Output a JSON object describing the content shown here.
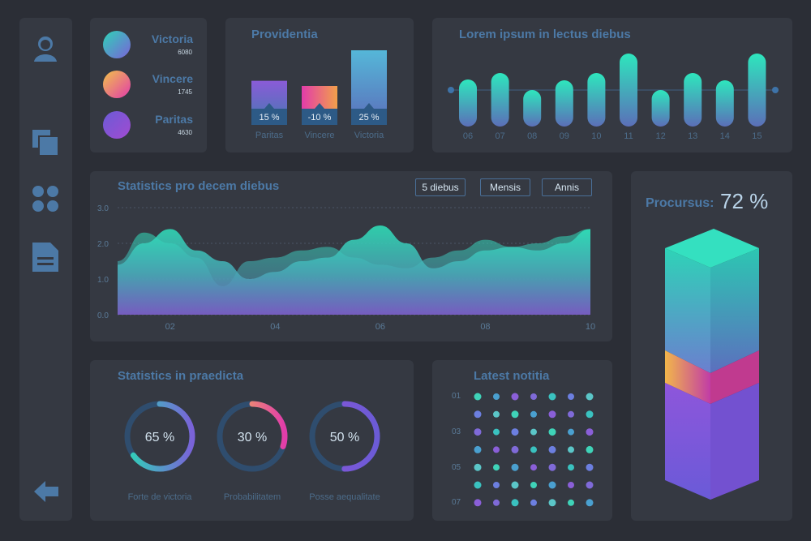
{
  "legend": [
    {
      "name": "Victoria",
      "value": "6080",
      "color_a": "#2ed3b7",
      "color_b": "#7a62d8"
    },
    {
      "name": "Vincere",
      "value": "1745",
      "color_a": "#f2c34a",
      "color_b": "#e23caa"
    },
    {
      "name": "Paritas",
      "value": "4630",
      "color_a": "#6b5bd6",
      "color_b": "#a14bd1"
    }
  ],
  "providentia": {
    "title": "Providentia",
    "chart_data": {
      "type": "bar",
      "categories": [
        "Paritas",
        "Vincere",
        "Victoria"
      ],
      "values": [
        15,
        -10,
        25
      ],
      "labels": [
        "15 %",
        "-10 %",
        "25 %"
      ]
    }
  },
  "lorem": {
    "title": "Lorem ipsum in lectus diebus",
    "chart_data": {
      "type": "bar",
      "categories": [
        "06",
        "07",
        "08",
        "09",
        "10",
        "11",
        "12",
        "13",
        "14",
        "15"
      ],
      "values": [
        58,
        66,
        45,
        57,
        66,
        90,
        45,
        66,
        57,
        90
      ]
    }
  },
  "stats10": {
    "title": "Statistics pro decem diebus",
    "buttons": [
      "5 diebus",
      "Mensis",
      "Annis"
    ],
    "chart_data": {
      "type": "area",
      "x": [
        1,
        1.5,
        2,
        2.5,
        3,
        3.5,
        4,
        4.5,
        5,
        5.5,
        6,
        6.5,
        7,
        7.5,
        8,
        8.5,
        9,
        9.5,
        10
      ],
      "series": [
        {
          "values": [
            1.4,
            2.0,
            2.4,
            1.8,
            1.5,
            1.0,
            1.2,
            1.5,
            1.6,
            2.1,
            2.5,
            2.0,
            1.3,
            1.5,
            1.8,
            1.9,
            1.8,
            2.0,
            2.4
          ]
        },
        {
          "values": [
            1.5,
            2.3,
            2.0,
            1.6,
            0.8,
            1.5,
            1.6,
            1.8,
            1.9,
            1.6,
            1.4,
            1.3,
            1.6,
            1.8,
            2.1,
            1.9,
            2.0,
            2.2,
            2.4
          ]
        }
      ],
      "yticks": [
        "0.0",
        "1.0",
        "2.0",
        "3.0"
      ],
      "xticks": [
        "02",
        "04",
        "06",
        "08",
        "10"
      ],
      "ylim": [
        0,
        3
      ]
    }
  },
  "procursus": {
    "label": "Procursus:",
    "value": "72 %"
  },
  "praedicta": {
    "title": "Statistics in praedicta",
    "chart_data": {
      "type": "pie",
      "items": [
        {
          "label": "Forte de victoria",
          "value": 65,
          "text": "65 %",
          "c1": "#2ed3b7",
          "c2": "#7a62d8"
        },
        {
          "label": "Probabilitatem",
          "value": 30,
          "text": "30 %",
          "c1": "#f2c34a",
          "c2": "#e23caa"
        },
        {
          "label": "Posse aequalitate",
          "value": 50,
          "text": "50 %",
          "c1": "#8a54d8",
          "c2": "#6b5bd6"
        }
      ]
    }
  },
  "notitia": {
    "title": "Latest notitia",
    "yticks": [
      "01",
      "03",
      "05",
      "07"
    ]
  },
  "sidebar": {
    "icons": [
      "user-icon",
      "copy-icon",
      "apps-icon",
      "document-icon"
    ],
    "back": "back-arrow-icon"
  }
}
